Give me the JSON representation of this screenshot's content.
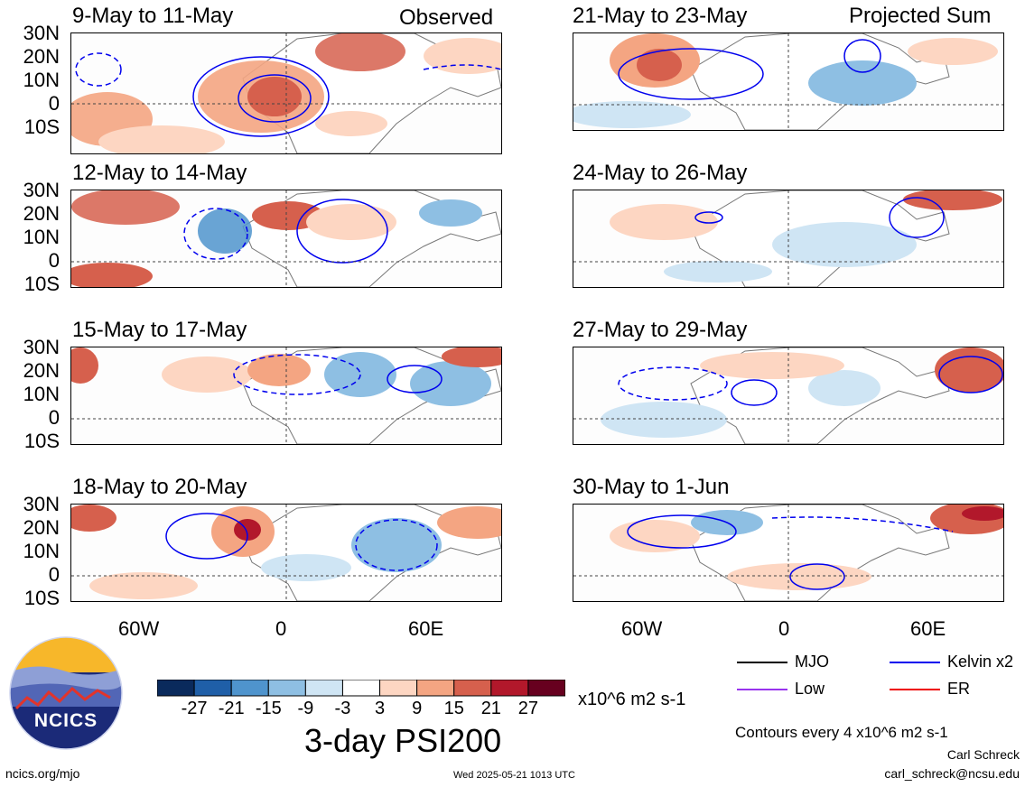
{
  "panels": [
    {
      "title": "9-May to 11-May",
      "tag": "Observed"
    },
    {
      "title": "12-May to 14-May",
      "tag": ""
    },
    {
      "title": "15-May to 17-May",
      "tag": ""
    },
    {
      "title": "18-May to 20-May",
      "tag": ""
    },
    {
      "title": "21-May to 23-May",
      "tag": "Projected Sum"
    },
    {
      "title": "24-May to 26-May",
      "tag": ""
    },
    {
      "title": "27-May to 29-May",
      "tag": ""
    },
    {
      "title": "30-May to 1-Jun",
      "tag": ""
    }
  ],
  "lat_labels": [
    "30N",
    "20N",
    "10N",
    "0",
    "10S"
  ],
  "lon_labels": [
    "60W",
    "0",
    "60E"
  ],
  "colorbar": {
    "ticks": [
      "-27",
      "-21",
      "-15",
      "-9",
      "-3",
      "3",
      "9",
      "15",
      "21",
      "27"
    ],
    "colors": [
      "#0a2a5c",
      "#1f5fa8",
      "#4f94cd",
      "#8ebfe3",
      "#cfe5f4",
      "#ffffff",
      "#fdd6c2",
      "#f4a582",
      "#d6604d",
      "#b2182b",
      "#67001f"
    ],
    "units": "x10^6 m2 s-1",
    "title": "3-day PSI200"
  },
  "legend": {
    "items": [
      {
        "label": "MJO",
        "color": "#000000"
      },
      {
        "label": "Kelvin x2",
        "color": "#0000ee"
      },
      {
        "label": "Low",
        "color": "#9933ee"
      },
      {
        "label": "ER",
        "color": "#ee0000"
      }
    ],
    "contour_note": "Contours every 4 x10^6 m2 s-1",
    "author": "Carl Schreck",
    "email": "carl_schreck@ncsu.edu"
  },
  "logo_text": "NCICS",
  "site": "ncics.org/mjo",
  "timestamp": "Wed 2025-05-21 1013 UTC"
}
